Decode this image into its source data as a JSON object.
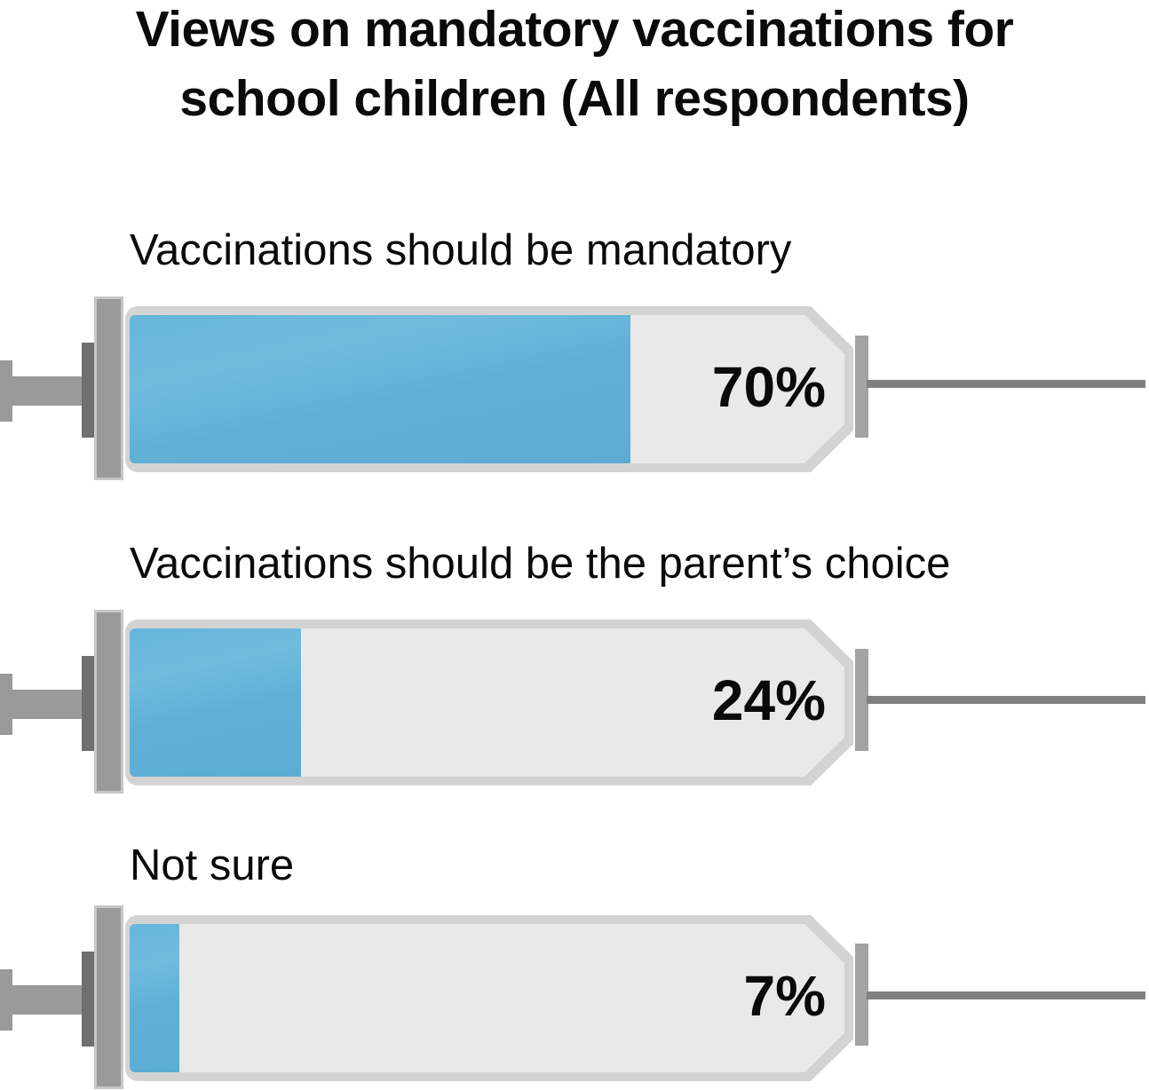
{
  "title": {
    "line1": "Views on mandatory vaccinations for",
    "line2": "school children (All respondents)"
  },
  "chart_data": {
    "type": "bar",
    "orientation": "horizontal",
    "style": "syringe-pictogram",
    "title": "Views on mandatory vaccinations for school children (All respondents)",
    "categories": [
      "Vaccinations should be mandatory",
      "Vaccinations should be the parent’s choice",
      "Not sure"
    ],
    "values": [
      70,
      24,
      7
    ],
    "value_labels": [
      "70%",
      "24%",
      "7%"
    ],
    "unit": "%",
    "xlim": [
      0,
      100
    ],
    "grid": false,
    "legend": false
  },
  "colors": {
    "fill_blue": "#5cacd4",
    "fill_blue_light": "#70bcdf",
    "barrel_border": "#d3d3d3",
    "barrel_interior": "#e9e9e9",
    "plunger": "#9a9a9a",
    "plunger_edge": "#c7c7c7",
    "plunger_dark": "#6f6f6f",
    "hub": "#a3a3a3",
    "needle": "#808080",
    "text": "#0a0a0a"
  }
}
